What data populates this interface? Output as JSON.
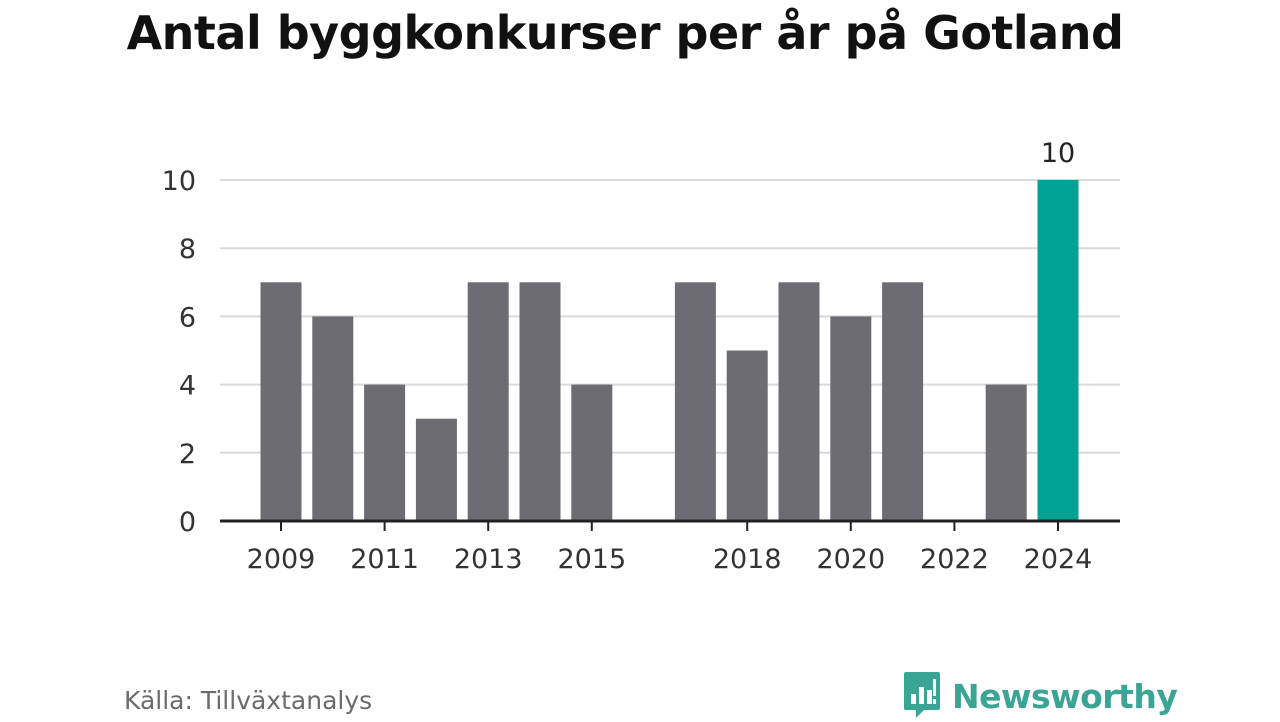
{
  "title": "Antal byggkonkurser per år på Gotland",
  "source": "Källa: Tillväxtanalys",
  "brand": {
    "name": "Newsworthy",
    "icon": "newsworthy-logo-icon"
  },
  "colors": {
    "bar": "#6d6c72",
    "highlight": "#00a396",
    "grid": "#d9d9d9",
    "axis": "#222222",
    "brand": "#3aa595"
  },
  "chart_data": {
    "type": "bar",
    "title": "Antal byggkonkurser per år på Gotland",
    "xlabel": "",
    "ylabel": "",
    "categories": [
      "2009",
      "2010",
      "2011",
      "2012",
      "2013",
      "2014",
      "2015",
      "2016",
      "2017",
      "2018",
      "2019",
      "2020",
      "2021",
      "2022",
      "2023",
      "2024"
    ],
    "values": [
      7,
      6,
      4,
      3,
      7,
      7,
      4,
      0,
      7,
      5,
      7,
      6,
      7,
      0,
      4,
      10
    ],
    "x_tick_labels": [
      "2009",
      "2011",
      "2013",
      "2015",
      "2018",
      "2020",
      "2022",
      "2024"
    ],
    "y_ticks": [
      "0",
      "2",
      "4",
      "6",
      "8",
      "10"
    ],
    "ylim": [
      0,
      10
    ],
    "grid": true,
    "highlight": {
      "category": "2024",
      "label": "10"
    }
  }
}
